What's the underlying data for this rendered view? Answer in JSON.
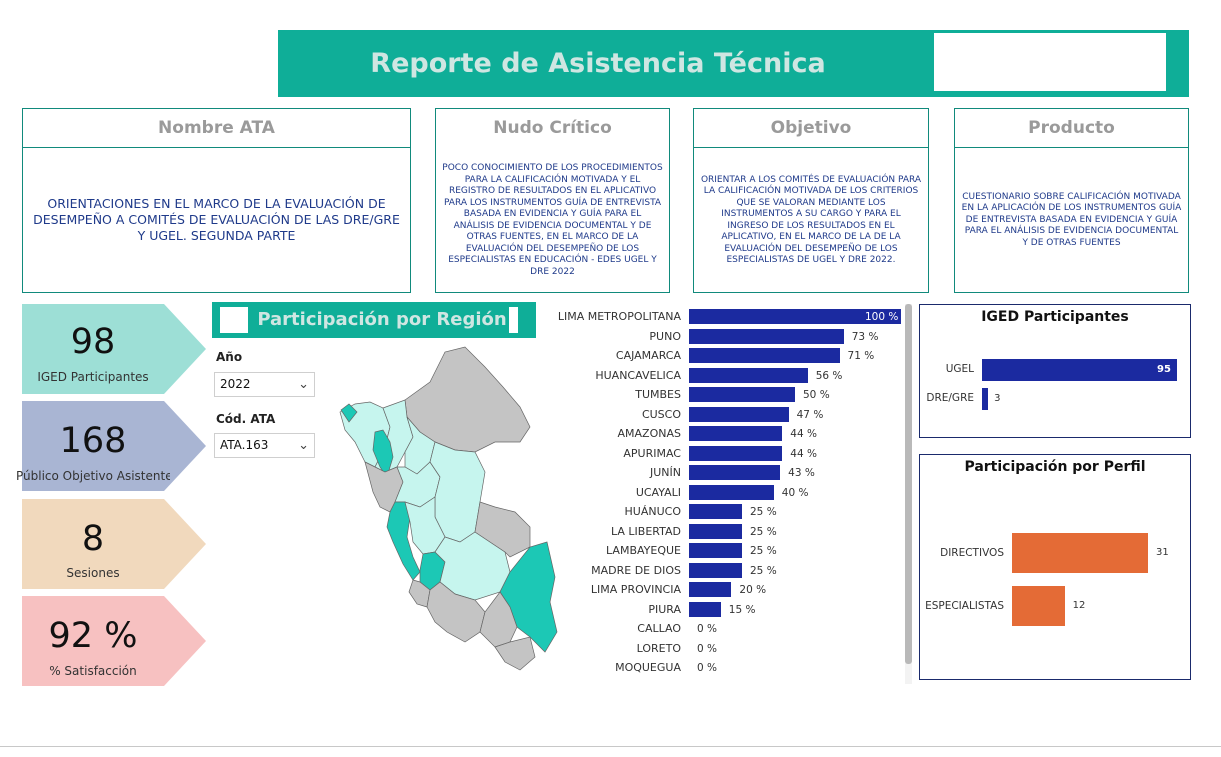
{
  "header": {
    "title": "Reporte de Asistencia Técnica"
  },
  "cards": {
    "ata": {
      "title": "Nombre ATA",
      "text": "ORIENTACIONES EN EL MARCO DE LA EVALUACIÓN DE DESEMPEÑO A COMITÉS DE EVALUACIÓN DE LAS DRE/GRE Y UGEL. SEGUNDA PARTE"
    },
    "nudo": {
      "title": "Nudo Crítico",
      "text": "POCO CONOCIMIENTO DE LOS PROCEDIMIENTOS PARA LA CALIFICACIÓN MOTIVADA Y EL REGISTRO DE RESULTADOS EN EL APLICATIVO PARA LOS INSTRUMENTOS GUÍA DE ENTREVISTA BASADA EN EVIDENCIA Y GUÍA PARA EL ANÁLISIS DE EVIDENCIA DOCUMENTAL Y DE OTRAS FUENTES, EN EL MARCO DE LA EVALUACIÓN DEL DESEMPEÑO DE LOS ESPECIALISTAS EN EDUCACIÓN - EDES UGEL Y DRE 2022"
    },
    "objetivo": {
      "title": "Objetivo",
      "text": "ORIENTAR A LOS COMITÉS DE EVALUACIÓN PARA LA CALIFICACIÓN MOTIVADA DE LOS CRITERIOS QUE SE VALORAN MEDIANTE LOS INSTRUMENTOS A SU CARGO Y PARA EL INGRESO DE LOS RESULTADOS EN EL APLICATIVO, EN EL MARCO DE LA DE LA EVALUACIÓN DEL DESEMPEÑO DE LOS ESPECIALISTAS DE UGEL Y DRE 2022."
    },
    "producto": {
      "title": "Producto",
      "text": "CUESTIONARIO SOBRE CALIFICACIÓN MOTIVADA EN LA APLICACIÓN DE LOS INSTRUMENTOS GUÍA DE ENTREVISTA BASADA EN EVIDENCIA Y GUÍA PARA EL ANÁLISIS DE EVIDENCIA DOCUMENTAL Y DE OTRAS FUENTES"
    }
  },
  "kpis": [
    {
      "value": "98",
      "label": "IGED Participantes",
      "color": "#9ddfd6"
    },
    {
      "value": "168",
      "label": "Público Objetivo Asistente",
      "color": "#a9b5d3"
    },
    {
      "value": "8",
      "label": "Sesiones",
      "color": "#f1d9bd"
    },
    {
      "value": "92 %",
      "label": "% Satisfacción",
      "color": "#f7c1c1"
    }
  ],
  "region_section": {
    "title": "Participación por Región"
  },
  "filters": {
    "year": {
      "label": "Año",
      "value": "2022"
    },
    "ata_code": {
      "label": "Cód. ATA",
      "value": "ATA.163"
    }
  },
  "colors": {
    "accent": "#0fae98",
    "bar_blue": "#1b2aa0",
    "bar_orange": "#e46b36",
    "map_light": "#c6f5ee",
    "map_dark": "#1cc8b5",
    "map_gray": "#c4c4c4"
  },
  "chart_data": [
    {
      "type": "bar",
      "orientation": "horizontal",
      "title": "",
      "categories": [
        "LIMA METROPOLITANA",
        "PUNO",
        "CAJAMARCA",
        "HUANCAVELICA",
        "TUMBES",
        "CUSCO",
        "AMAZONAS",
        "APURIMAC",
        "JUNÍN",
        "UCAYALI",
        "HUÁNUCO",
        "LA LIBERTAD",
        "LAMBAYEQUE",
        "MADRE DE DIOS",
        "LIMA PROVINCIA",
        "PIURA",
        "CALLAO",
        "LORETO",
        "MOQUEGUA"
      ],
      "values": [
        100,
        73,
        71,
        56,
        50,
        47,
        44,
        44,
        43,
        40,
        25,
        25,
        25,
        25,
        20,
        15,
        0,
        0,
        0
      ],
      "value_labels": [
        "100 %",
        "73 %",
        "71 %",
        "56 %",
        "50 %",
        "47 %",
        "44 %",
        "44 %",
        "43 %",
        "40 %",
        "25 %",
        "25 %",
        "25 %",
        "25 %",
        "20 %",
        "15 %",
        "0 %",
        "0 %",
        "0 %"
      ],
      "xlim": [
        0,
        100
      ]
    },
    {
      "type": "bar",
      "orientation": "horizontal",
      "title": "IGED Participantes",
      "categories": [
        "UGEL",
        "DRE/GRE"
      ],
      "values": [
        95,
        3
      ],
      "value_labels": [
        "95",
        "3"
      ],
      "xlim": [
        0,
        95
      ]
    },
    {
      "type": "bar",
      "orientation": "horizontal",
      "title": "Participación por Perfil",
      "categories": [
        "DIRECTIVOS",
        "ESPECIALISTAS"
      ],
      "values": [
        31,
        12
      ],
      "value_labels": [
        "31",
        "12"
      ],
      "xlim": [
        0,
        31
      ]
    }
  ]
}
